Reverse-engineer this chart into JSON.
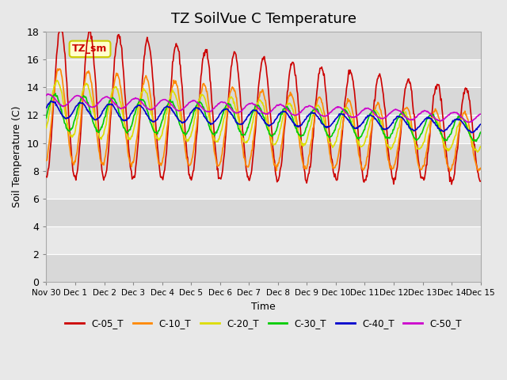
{
  "title": "TZ SoilVue C Temperature",
  "ylabel": "Soil Temperature (C)",
  "xlabel": "Time",
  "annotation_text": "TZ_sm",
  "annotation_color": "#cc0000",
  "annotation_bg": "#ffffcc",
  "annotation_border": "#cccc00",
  "ylim": [
    0,
    18
  ],
  "yticks": [
    0,
    2,
    4,
    6,
    8,
    10,
    12,
    14,
    16,
    18
  ],
  "bg_color": "#e8e8e8",
  "grid_color": "#ffffff",
  "series_colors": {
    "C-05_T": "#cc0000",
    "C-10_T": "#ff8800",
    "C-20_T": "#dddd00",
    "C-30_T": "#00cc00",
    "C-40_T": "#0000cc",
    "C-50_T": "#cc00cc"
  },
  "legend_labels": [
    "C-05_T",
    "C-10_T",
    "C-20_T",
    "C-30_T",
    "C-40_T",
    "C-50_T"
  ],
  "xtick_labels": [
    "Nov 30",
    "Dec 1",
    "Dec 2",
    "Dec 3",
    "Dec 4",
    "Dec 5",
    "Dec 6",
    "Dec 7",
    "Dec 8",
    "Dec 9",
    "Dec 10",
    "Dec 11",
    "Dec 12",
    "Dec 13",
    "Dec 14",
    "Dec 15"
  ],
  "xtick_positions": [
    0,
    1,
    2,
    3,
    4,
    5,
    6,
    7,
    8,
    9,
    10,
    11,
    12,
    13,
    14,
    15
  ],
  "xlim": [
    0,
    15
  ],
  "num_days": 15
}
